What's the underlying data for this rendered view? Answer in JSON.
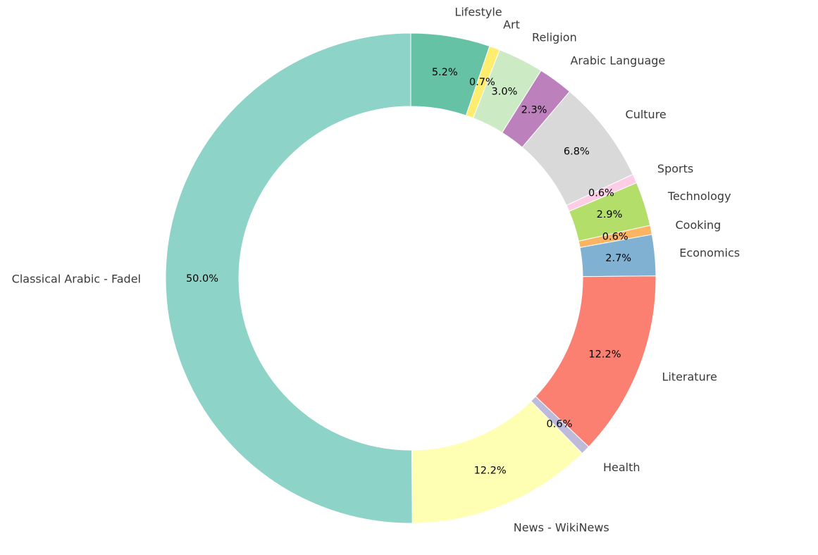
{
  "chart_data": {
    "type": "pie",
    "variant": "donut",
    "start": "top",
    "direction": "clockwise",
    "legend": "none",
    "grid": false,
    "slices": [
      {
        "label": "Lifestyle",
        "value": 5.2,
        "pct_label": "5.2%",
        "color": "#66c2a5"
      },
      {
        "label": "Art",
        "value": 0.7,
        "pct_label": "0.7%",
        "color": "#ffed6f"
      },
      {
        "label": "Religion",
        "value": 3.0,
        "pct_label": "3.0%",
        "color": "#ccebc5"
      },
      {
        "label": "Arabic Language",
        "value": 2.3,
        "pct_label": "2.3%",
        "color": "#bc80bd"
      },
      {
        "label": "Culture",
        "value": 6.8,
        "pct_label": "6.8%",
        "color": "#d9d9d9"
      },
      {
        "label": "Sports",
        "value": 0.6,
        "pct_label": "0.6%",
        "color": "#fccde5"
      },
      {
        "label": "Technology",
        "value": 2.9,
        "pct_label": "2.9%",
        "color": "#b3de69"
      },
      {
        "label": "Cooking",
        "value": 0.6,
        "pct_label": "0.6%",
        "color": "#fdb462"
      },
      {
        "label": "Economics",
        "value": 2.7,
        "pct_label": "2.7%",
        "color": "#80b1d3"
      },
      {
        "label": "Literature",
        "value": 12.2,
        "pct_label": "12.2%",
        "color": "#fb8072"
      },
      {
        "label": "Health",
        "value": 0.6,
        "pct_label": "0.6%",
        "color": "#bebada"
      },
      {
        "label": "News - WikiNews",
        "value": 12.2,
        "pct_label": "12.2%",
        "color": "#ffffb3"
      },
      {
        "label": "Classical Arabic - Fadel",
        "value": 50.0,
        "pct_label": "50.0%",
        "color": "#8dd3c7"
      }
    ]
  }
}
